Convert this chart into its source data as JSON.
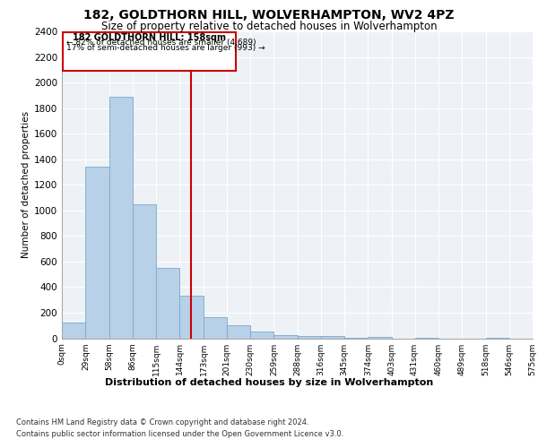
{
  "title1": "182, GOLDTHORN HILL, WOLVERHAMPTON, WV2 4PZ",
  "title2": "Size of property relative to detached houses in Wolverhampton",
  "xlabel": "Distribution of detached houses by size in Wolverhampton",
  "ylabel": "Number of detached properties",
  "footnote1": "Contains HM Land Registry data © Crown copyright and database right 2024.",
  "footnote2": "Contains public sector information licensed under the Open Government Licence v3.0.",
  "bar_color": "#b8d0e8",
  "bar_edge_color": "#7aaac8",
  "annotation_box_color": "#cc0000",
  "vline_color": "#cc0000",
  "annotation_text1": "182 GOLDTHORN HILL: 158sqm",
  "annotation_text2": "← 82% of detached houses are smaller (4,689)",
  "annotation_text3": "17% of semi-detached houses are larger (993) →",
  "property_size_sqm": 158,
  "bin_edges": [
    0,
    29,
    58,
    86,
    115,
    144,
    173,
    201,
    230,
    259,
    288,
    316,
    345,
    374,
    403,
    431,
    460,
    489,
    518,
    546,
    575
  ],
  "bar_heights": [
    120,
    1340,
    1890,
    1050,
    550,
    330,
    165,
    100,
    50,
    25,
    20,
    15,
    5,
    10,
    0,
    5,
    0,
    0,
    5,
    0
  ],
  "ylim": [
    0,
    2400
  ],
  "yticks": [
    0,
    200,
    400,
    600,
    800,
    1000,
    1200,
    1400,
    1600,
    1800,
    2000,
    2200,
    2400
  ],
  "plot_bg_color": "#eef2f7",
  "title_fontsize": 10,
  "subtitle_fontsize": 8.5,
  "tick_labels": [
    "0sqm",
    "29sqm",
    "58sqm",
    "86sqm",
    "115sqm",
    "144sqm",
    "173sqm",
    "201sqm",
    "230sqm",
    "259sqm",
    "288sqm",
    "316sqm",
    "345sqm",
    "374sqm",
    "403sqm",
    "431sqm",
    "460sqm",
    "489sqm",
    "518sqm",
    "546sqm",
    "575sqm"
  ]
}
